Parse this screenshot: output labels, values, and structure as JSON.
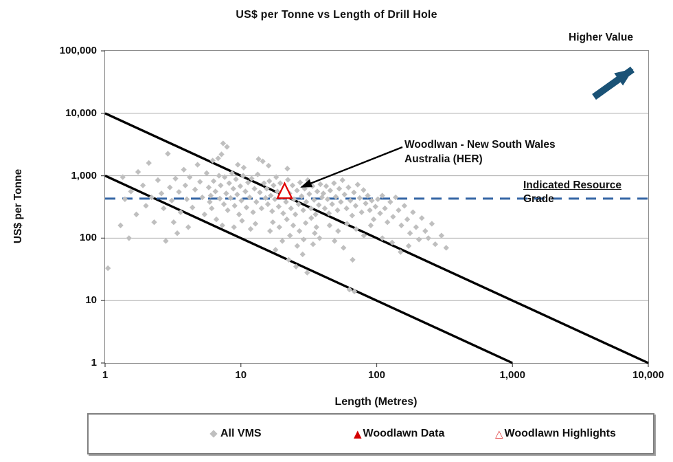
{
  "chart_data": {
    "type": "scatter",
    "title": "US$ per Tonne vs Length of Drill Hole",
    "xlabel": "Length (Metres)",
    "ylabel": "US$ per Tonne",
    "x_scale": "log",
    "y_scale": "log",
    "xlim": [
      1,
      10000
    ],
    "ylim": [
      1,
      100000
    ],
    "x_tick_values": [
      1,
      10,
      100,
      1000,
      10000
    ],
    "x_tick_labels": [
      "1",
      "10",
      "100",
      "1,000",
      "10,000"
    ],
    "y_tick_values": [
      1,
      10,
      100,
      1000,
      10000,
      100000
    ],
    "y_tick_labels": [
      "1",
      "10",
      "100",
      "1,000",
      "10,000",
      "100,000"
    ],
    "grid": "horizontal-only",
    "colors": {
      "scatter": "#BFBFBF",
      "trend_line": "#000000",
      "reference_line": "#3465A4",
      "highlight_triangle": "#E00000",
      "value_arrow": "#1A5276",
      "gridline": "#ABABAB"
    },
    "trend_lines": [
      {
        "from": [
          1,
          10000
        ],
        "to": [
          10000,
          1
        ]
      },
      {
        "from": [
          1,
          1000
        ],
        "to": [
          1000,
          1
        ]
      }
    ],
    "reference_line": {
      "y": 430,
      "style": "dashed",
      "label_line1": "Indicated Resource",
      "label_line2": "Grade"
    },
    "annotations": {
      "callout_line1": "Woodlwan - New South Wales",
      "callout_line2": "Australia (HER)",
      "higher_value": "Higher Value"
    },
    "legend": [
      "All VMS",
      "Woodlawn Data",
      "Woodlawn Highlights"
    ],
    "series": [
      {
        "name": "All VMS",
        "marker": "diamond",
        "points": [
          [
            1.05,
            33
          ],
          [
            1.3,
            160
          ],
          [
            1.35,
            950
          ],
          [
            1.4,
            420
          ],
          [
            1.5,
            100
          ],
          [
            1.55,
            560
          ],
          [
            1.7,
            240
          ],
          [
            1.75,
            1150
          ],
          [
            1.9,
            700
          ],
          [
            2.0,
            330
          ],
          [
            2.1,
            1600
          ],
          [
            2.2,
            450
          ],
          [
            2.3,
            180
          ],
          [
            2.45,
            850
          ],
          [
            2.6,
            520
          ],
          [
            2.7,
            300
          ],
          [
            2.9,
            2250
          ],
          [
            3.0,
            650
          ],
          [
            3.1,
            400
          ],
          [
            3.2,
            180
          ],
          [
            3.3,
            900
          ],
          [
            3.5,
            550
          ],
          [
            3.6,
            260
          ],
          [
            3.8,
            1250
          ],
          [
            3.9,
            700
          ],
          [
            4.0,
            420
          ],
          [
            4.2,
            950
          ],
          [
            4.4,
            310
          ],
          [
            4.6,
            600
          ],
          [
            4.8,
            1500
          ],
          [
            5.0,
            800
          ],
          [
            5.2,
            450
          ],
          [
            5.4,
            240
          ],
          [
            5.6,
            1100
          ],
          [
            5.8,
            650
          ],
          [
            5.9,
            380
          ],
          [
            4.1,
            150
          ],
          [
            3.4,
            120
          ],
          [
            2.8,
            90
          ],
          [
            7.4,
            3300
          ],
          [
            7.9,
            2900
          ],
          [
            6.8,
            1900
          ],
          [
            7.2,
            2200
          ],
          [
            13.5,
            1850
          ],
          [
            14.5,
            1700
          ],
          [
            9.5,
            1500
          ],
          [
            10.5,
            1350
          ],
          [
            16,
            1450
          ],
          [
            22,
            1300
          ],
          [
            6.2,
            1750
          ],
          [
            6.0,
            480
          ],
          [
            6.1,
            300
          ],
          [
            6.3,
            820
          ],
          [
            6.5,
            560
          ],
          [
            6.6,
            200
          ],
          [
            6.9,
            1000
          ],
          [
            7.0,
            430
          ],
          [
            7.1,
            700
          ],
          [
            7.5,
            350
          ],
          [
            7.6,
            950
          ],
          [
            7.8,
            520
          ],
          [
            8.0,
            280
          ],
          [
            8.2,
            760
          ],
          [
            8.4,
            440
          ],
          [
            8.6,
            1100
          ],
          [
            8.8,
            620
          ],
          [
            9.0,
            330
          ],
          [
            9.2,
            880
          ],
          [
            9.4,
            500
          ],
          [
            9.7,
            240
          ],
          [
            9.9,
            680
          ],
          [
            10.1,
            400
          ],
          [
            10.4,
            1000
          ],
          [
            10.8,
            560
          ],
          [
            11.0,
            310
          ],
          [
            11.3,
            780
          ],
          [
            11.6,
            450
          ],
          [
            12.0,
            900
          ],
          [
            12.3,
            260
          ],
          [
            12.6,
            620
          ],
          [
            13.0,
            380
          ],
          [
            13.3,
            1050
          ],
          [
            13.8,
            540
          ],
          [
            14.2,
            300
          ],
          [
            14.8,
            760
          ],
          [
            15.2,
            440
          ],
          [
            12.8,
            170
          ],
          [
            11.8,
            140
          ],
          [
            10.2,
            190
          ],
          [
            8.9,
            150
          ],
          [
            7.3,
            160
          ],
          [
            15.5,
            620
          ],
          [
            15.8,
            350
          ],
          [
            16.2,
            820
          ],
          [
            16.6,
            480
          ],
          [
            17.0,
            270
          ],
          [
            17.4,
            700
          ],
          [
            17.8,
            420
          ],
          [
            18.2,
            950
          ],
          [
            18.6,
            560
          ],
          [
            19.0,
            320
          ],
          [
            19.5,
            760
          ],
          [
            20.0,
            450
          ],
          [
            20.5,
            250
          ],
          [
            21.0,
            640
          ],
          [
            21.5,
            380
          ],
          [
            22.2,
            860
          ],
          [
            22.8,
            520
          ],
          [
            23.4,
            300
          ],
          [
            24.0,
            700
          ],
          [
            24.6,
            420
          ],
          [
            25.2,
            240
          ],
          [
            25.9,
            580
          ],
          [
            26.6,
            350
          ],
          [
            27.3,
            780
          ],
          [
            28.0,
            470
          ],
          [
            28.8,
            280
          ],
          [
            29.5,
            620
          ],
          [
            30.3,
            380
          ],
          [
            31.1,
            850
          ],
          [
            31.9,
            510
          ],
          [
            32.8,
            300
          ],
          [
            33.7,
            680
          ],
          [
            34.6,
            410
          ],
          [
            35.5,
            240
          ],
          [
            36.5,
            560
          ],
          [
            37.5,
            340
          ],
          [
            38.5,
            730
          ],
          [
            39.5,
            450
          ],
          [
            17.2,
            180
          ],
          [
            19.2,
            150
          ],
          [
            21.8,
            200
          ],
          [
            24.3,
            160
          ],
          [
            27.0,
            130
          ],
          [
            30.0,
            175
          ],
          [
            33.0,
            210
          ],
          [
            36.0,
            150
          ],
          [
            16.4,
            130
          ],
          [
            23.0,
            110
          ],
          [
            29.0,
            95
          ],
          [
            35.0,
            120
          ],
          [
            20.2,
            90
          ],
          [
            26.0,
            75
          ],
          [
            18.0,
            65
          ],
          [
            22.5,
            45
          ],
          [
            28.5,
            55
          ],
          [
            34.0,
            80
          ],
          [
            38.0,
            100
          ],
          [
            25.5,
            35
          ],
          [
            30.8,
            28
          ],
          [
            40.5,
            520
          ],
          [
            41.5,
            300
          ],
          [
            42.5,
            680
          ],
          [
            43.5,
            420
          ],
          [
            44.5,
            250
          ],
          [
            45.5,
            580
          ],
          [
            47.0,
            350
          ],
          [
            48.5,
            760
          ],
          [
            50.0,
            460
          ],
          [
            51.5,
            280
          ],
          [
            53.0,
            620
          ],
          [
            54.5,
            380
          ],
          [
            56.0,
            850
          ],
          [
            58.0,
            500
          ],
          [
            60.0,
            300
          ],
          [
            62.0,
            650
          ],
          [
            64.0,
            400
          ],
          [
            66.0,
            230
          ],
          [
            68.0,
            540
          ],
          [
            70.0,
            330
          ],
          [
            72.5,
            720
          ],
          [
            75.0,
            440
          ],
          [
            77.5,
            260
          ],
          [
            80.0,
            590
          ],
          [
            83.0,
            360
          ],
          [
            86.0,
            480
          ],
          [
            89.0,
            280
          ],
          [
            92.0,
            400
          ],
          [
            95.0,
            200
          ],
          [
            98.0,
            320
          ],
          [
            45.0,
            160
          ],
          [
            52.0,
            130
          ],
          [
            60.5,
            170
          ],
          [
            70.5,
            140
          ],
          [
            80.5,
            110
          ],
          [
            90.5,
            160
          ],
          [
            49.0,
            90
          ],
          [
            57.0,
            70
          ],
          [
            66.5,
            45
          ],
          [
            63.0,
            15
          ],
          [
            68.5,
            14
          ],
          [
            102,
            420
          ],
          [
            106,
            250
          ],
          [
            110,
            480
          ],
          [
            115,
            300
          ],
          [
            120,
            180
          ],
          [
            126,
            380
          ],
          [
            132,
            220
          ],
          [
            138,
            450
          ],
          [
            145,
            280
          ],
          [
            152,
            160
          ],
          [
            160,
            330
          ],
          [
            168,
            200
          ],
          [
            176,
            120
          ],
          [
            185,
            260
          ],
          [
            195,
            150
          ],
          [
            205,
            95
          ],
          [
            215,
            210
          ],
          [
            228,
            130
          ],
          [
            240,
            100
          ],
          [
            255,
            170
          ],
          [
            270,
            80
          ],
          [
            300,
            110
          ],
          [
            325,
            70
          ],
          [
            110,
            100
          ],
          [
            130,
            85
          ],
          [
            150,
            60
          ],
          [
            172,
            75
          ]
        ]
      },
      {
        "name": "Woodlawn Data",
        "marker": "triangle-filled",
        "points": []
      },
      {
        "name": "Woodlawn Highlights",
        "marker": "triangle-open",
        "points": [
          [
            21,
            570
          ]
        ]
      }
    ]
  }
}
